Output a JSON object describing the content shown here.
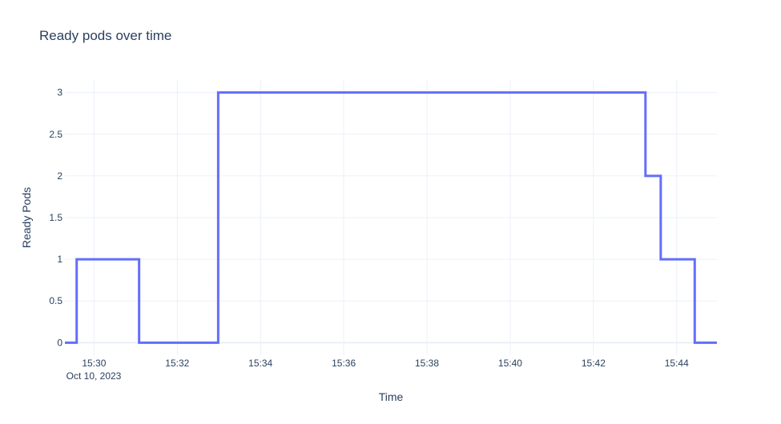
{
  "chart_data": {
    "type": "line",
    "line_shape": "step",
    "title": "Ready pods over time",
    "xlabel": "Time",
    "ylabel": "Ready Pods",
    "date_label": "Oct 10, 2023",
    "x": [
      "15:29:18",
      "15:29:35",
      "15:31:05",
      "15:32:59",
      "15:43:15",
      "15:43:37",
      "15:44:26",
      "15:44:58"
    ],
    "values": [
      0,
      1,
      0,
      3,
      2,
      1,
      0,
      0
    ],
    "xlim": [
      "15:29:18",
      "15:44:58"
    ],
    "ylim": [
      -0.15,
      3.15
    ],
    "xticks": [
      "15:30",
      "15:32",
      "15:34",
      "15:36",
      "15:38",
      "15:40",
      "15:42",
      "15:44"
    ],
    "yticks": [
      0,
      0.5,
      1,
      1.5,
      2,
      2.5,
      3
    ],
    "ytick_labels": [
      "0",
      "0.5",
      "1",
      "1.5",
      "2",
      "2.5",
      "3"
    ],
    "grid": true,
    "colors": {
      "line": "#636efa",
      "grid": "#ebf0f8",
      "text": "#2a3f5f"
    }
  }
}
